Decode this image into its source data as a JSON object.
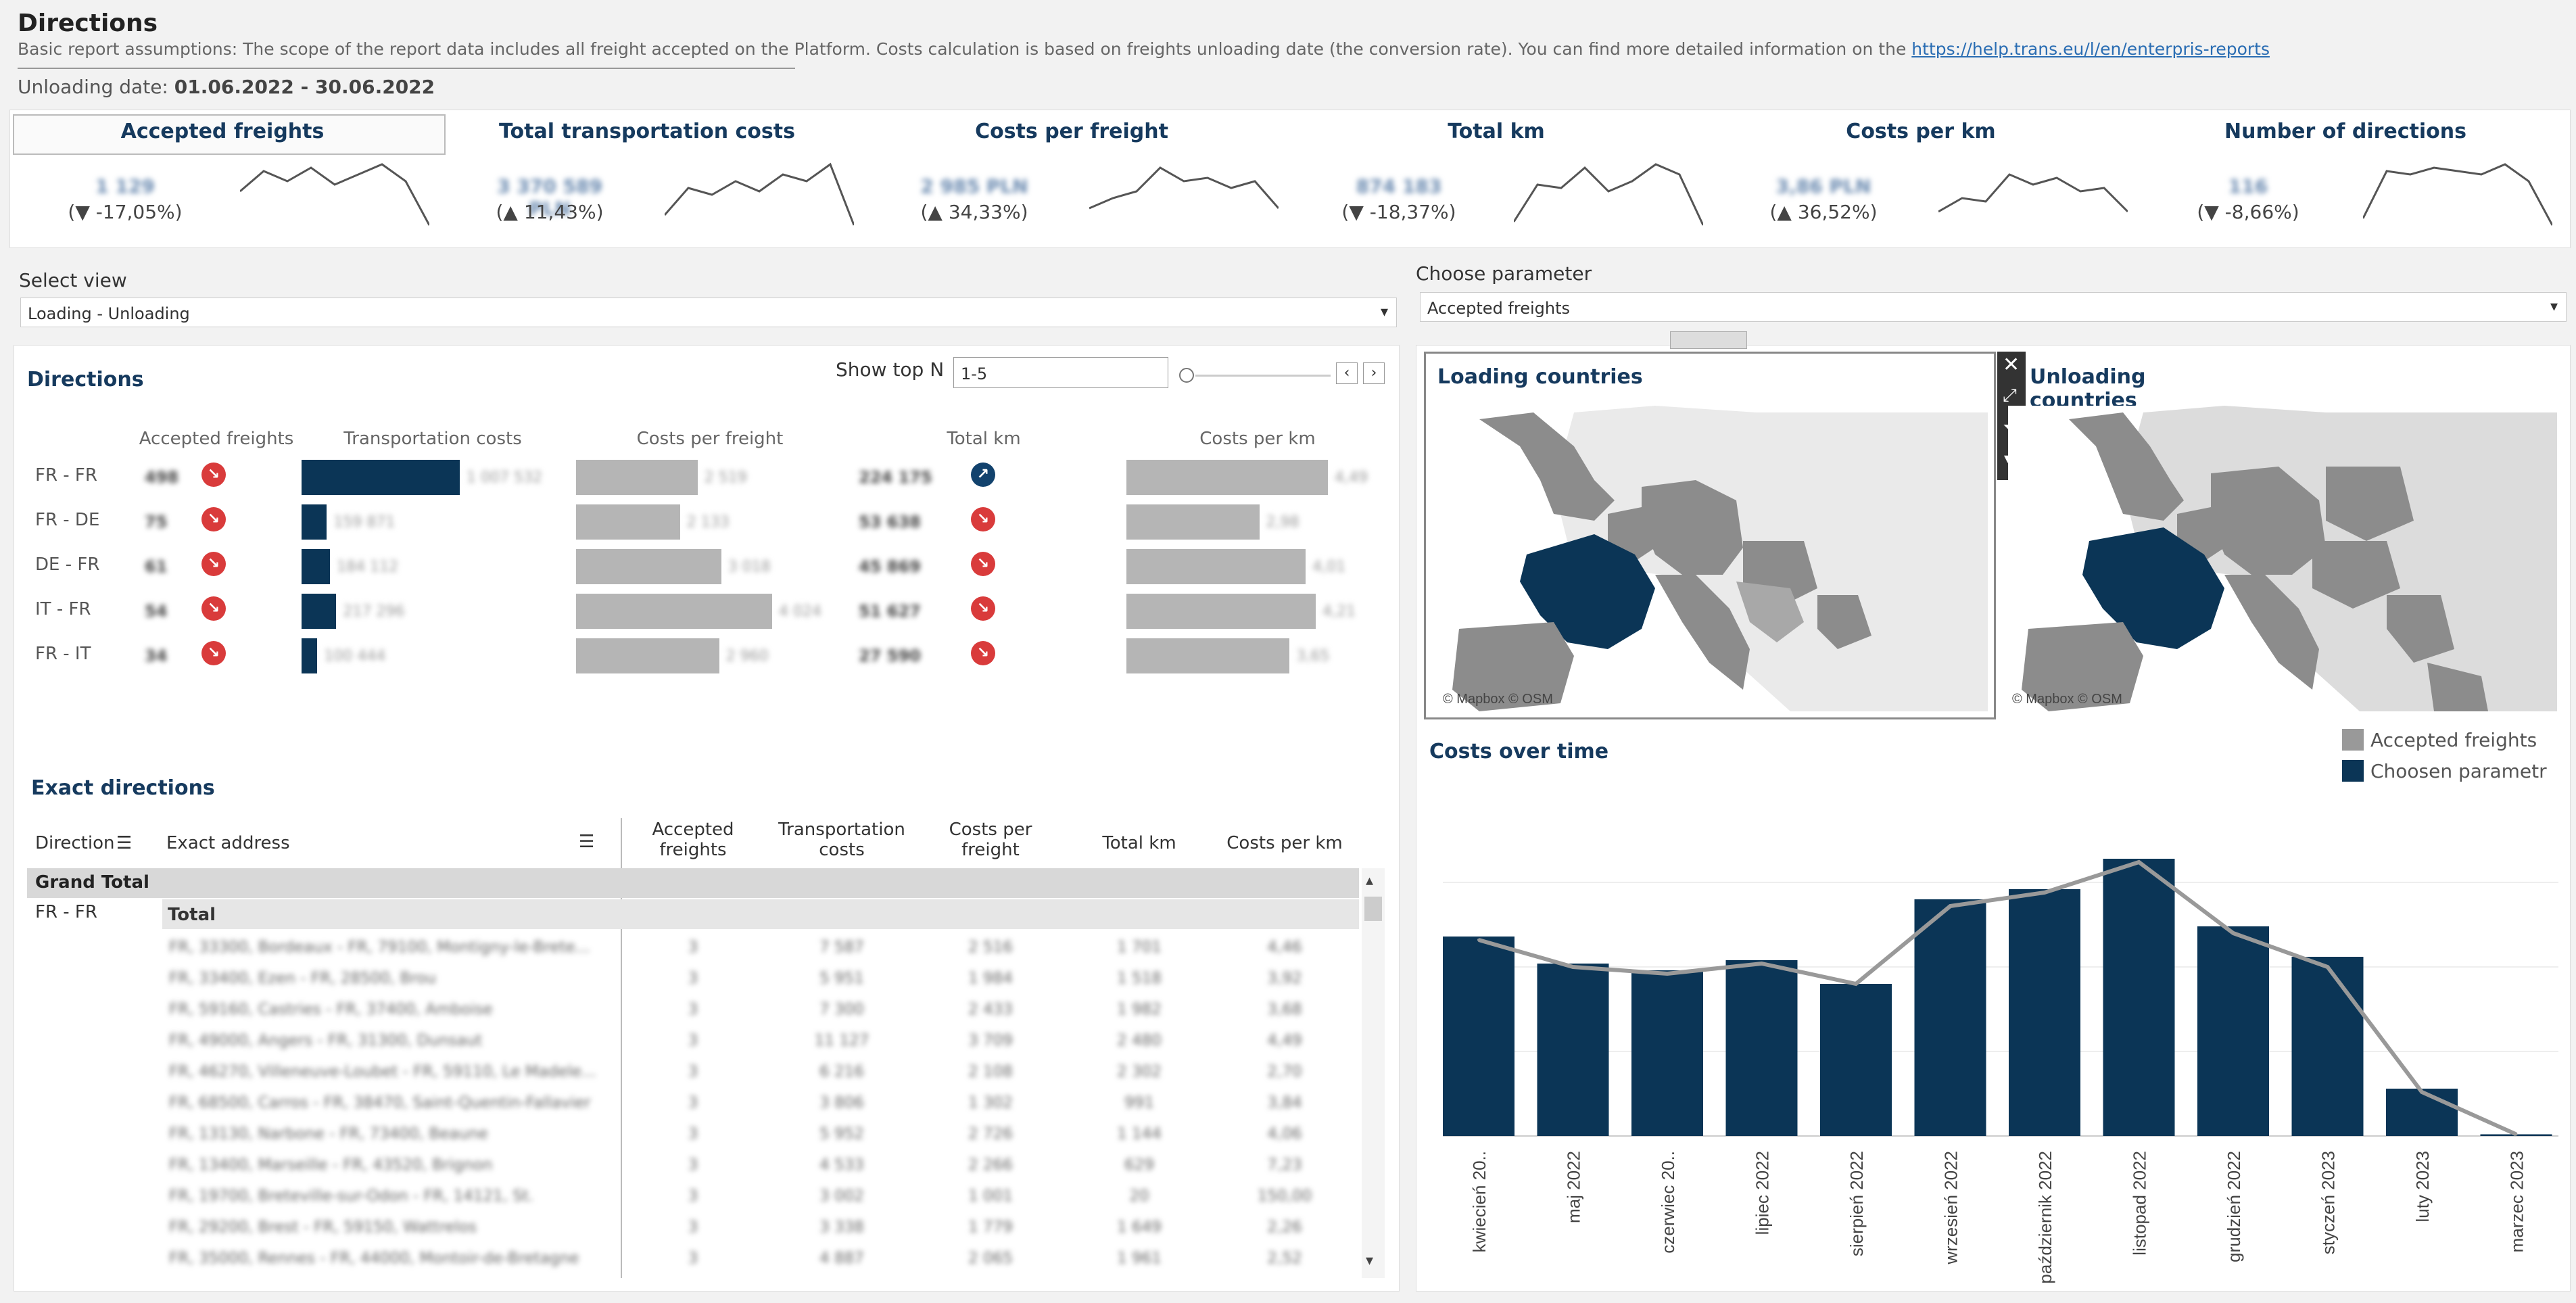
{
  "header": {
    "title": "Directions",
    "subtitle": "Basic report assumptions: The scope of the report data includes all freight accepted on the Platform. Costs calculation is based on freights unloading date (the conversion rate). You can find more detailed information on the ",
    "link": "https://help.trans.eu/l/en/enterpris-reports",
    "unloading_label": "Unloading date:",
    "unloading_value": "01.06.2022 - 30.06.2022"
  },
  "kpis": [
    {
      "title": "Accepted freights",
      "value": "1 129",
      "change": "(▼ -17,05%)",
      "active": true
    },
    {
      "title": "Total transportation costs",
      "value": "3 370 589 PLN",
      "change": "(▲ 11,43%)"
    },
    {
      "title": "Costs per freight",
      "value": "2 985 PLN",
      "change": "(▲ 34,33%)"
    },
    {
      "title": "Total km",
      "value": "874 183",
      "change": "(▼ -18,37%)"
    },
    {
      "title": "Costs per km",
      "value": "3,86 PLN",
      "change": "(▲ 36,52%)"
    },
    {
      "title": "Number of directions",
      "value": "116",
      "change": "(▼ -8,66%)"
    }
  ],
  "select_view": {
    "label": "Select view",
    "value": "Loading - Unloading"
  },
  "choose_parameter": {
    "label": "Choose parameter",
    "value": "Accepted freights"
  },
  "directions": {
    "title": "Directions",
    "show_top_label": "Show top N",
    "show_top_value": "1-5",
    "columns": [
      "Accepted freights",
      "Transportation costs",
      "Costs per freight",
      "Total km",
      "Costs per km"
    ],
    "rows": [
      {
        "dir": "FR - FR",
        "freights": "498",
        "freights_trend": "down",
        "cost": "1 007 532",
        "cost_frac": 1.0,
        "cpf": "2 519",
        "cpf_frac": 0.62,
        "km": "224 175",
        "km_trend": "up",
        "cpk": "4,49",
        "cpk_frac": 1.0
      },
      {
        "dir": "FR - DE",
        "freights": "75",
        "freights_trend": "down",
        "cost": "159 871",
        "cost_frac": 0.16,
        "cpf": "2 133",
        "cpf_frac": 0.53,
        "km": "53 638",
        "km_trend": "down",
        "cpk": "2,98",
        "cpk_frac": 0.66
      },
      {
        "dir": "DE - FR",
        "freights": "61",
        "freights_trend": "down",
        "cost": "184 112",
        "cpf": "3 018",
        "cost_frac": 0.18,
        "cpf_frac": 0.74,
        "km": "45 869",
        "km_trend": "down",
        "cpk": "4,01",
        "cpk_frac": 0.89
      },
      {
        "dir": "IT - FR",
        "freights": "54",
        "freights_trend": "down",
        "cost": "217 296",
        "cost_frac": 0.22,
        "cpf": "4 024",
        "cpf_frac": 1.0,
        "km": "51 627",
        "km_trend": "down",
        "cpk": "4,21",
        "cpk_frac": 0.94
      },
      {
        "dir": "FR - IT",
        "freights": "34",
        "freights_trend": "down",
        "cost": "100 444",
        "cost_frac": 0.1,
        "cpf": "2 960",
        "cpf_frac": 0.73,
        "km": "27 590",
        "km_trend": "down",
        "cpk": "3,65",
        "cpk_frac": 0.81
      }
    ]
  },
  "exact": {
    "title": "Exact directions",
    "headers": [
      "Direction",
      "Exact address",
      "Accepted freights",
      "Transportation costs",
      "Costs per freight",
      "Total km",
      "Costs per km"
    ],
    "grand_total": "Grand Total",
    "group_dir": "FR - FR",
    "group_total": "Total",
    "rows": [
      [
        "FR, 33300, Bordeaux - FR, 79100, Montigny-le-Brete...",
        "3",
        "7 587",
        "2 516",
        "1 701",
        "4,46"
      ],
      [
        "FR, 33400, Ezen - FR, 28500, Brou",
        "3",
        "5 951",
        "1 984",
        "1 518",
        "3,92"
      ],
      [
        "FR, 59160, Castries - FR, 37400, Amboise",
        "3",
        "7 300",
        "2 433",
        "1 982",
        "3,68"
      ],
      [
        "FR, 49000, Angers - FR, 31300, Dunsaut",
        "3",
        "11 127",
        "3 709",
        "2 480",
        "4,49"
      ],
      [
        "FR, 46270, Villeneuve-Loubet - FR, 59110, Le Madele...",
        "3",
        "6 216",
        "2 108",
        "2 302",
        "2,70"
      ],
      [
        "FR, 68500, Carros - FR, 38470, Saint-Quentin-Fallavier",
        "3",
        "3 806",
        "1 302",
        "991",
        "3,84"
      ],
      [
        "FR, 13130, Narbone - FR, 73400, Beaune",
        "3",
        "5 952",
        "2 726",
        "1 144",
        "4,06"
      ],
      [
        "FR, 13400, Marseille - FR, 43520, Brignon",
        "3",
        "4 533",
        "2 266",
        "629",
        "7,23"
      ],
      [
        "FR, 19700, Breteville-sur-Odon - FR, 14121, St.",
        "3",
        "3 002",
        "1 001",
        "20",
        "150,00"
      ],
      [
        "FR, 29200, Brest - FR, 59150, Wattrelos",
        "3",
        "3 338",
        "1 779",
        "1 649",
        "2,26"
      ],
      [
        "FR, 35000, Rennes - FR, 44000, Montoir-de-Bretagne",
        "3",
        "4 887",
        "2 065",
        "1 961",
        "2,52"
      ]
    ]
  },
  "maps": {
    "loading_title": "Loading countries",
    "unloading_title": "Unloading countries",
    "attribution": "© Mapbox © OSM"
  },
  "costs_over_time": {
    "title": "Costs over time",
    "legend_freights": "Accepted freights",
    "legend_param": "Choosen parametr",
    "colors": {
      "bar": "#0b3556",
      "line": "#999999"
    }
  },
  "chart_data": {
    "type": "bar",
    "title": "Costs over time",
    "categories": [
      "kwiecień 20..",
      "maj 2022",
      "czerwiec 20..",
      "lipiec 2022",
      "sierpień 2022",
      "wrzesień 2022",
      "październik 2022",
      "listopad 2022",
      "grudzień 2022",
      "styczeń 2023",
      "luty 2023",
      "marzec 2023"
    ],
    "series": [
      {
        "name": "Choosen parametr",
        "type": "bar",
        "values": [
          59,
          51,
          49,
          52,
          45,
          70,
          73,
          82,
          62,
          53,
          14,
          0.5
        ]
      },
      {
        "name": "Accepted freights",
        "type": "line",
        "values": [
          58,
          50,
          48,
          51,
          45,
          68,
          72,
          81,
          60,
          50,
          13,
          0.5
        ]
      }
    ],
    "ylim": [
      0,
      100
    ],
    "grid": true,
    "legend": "top-right"
  }
}
